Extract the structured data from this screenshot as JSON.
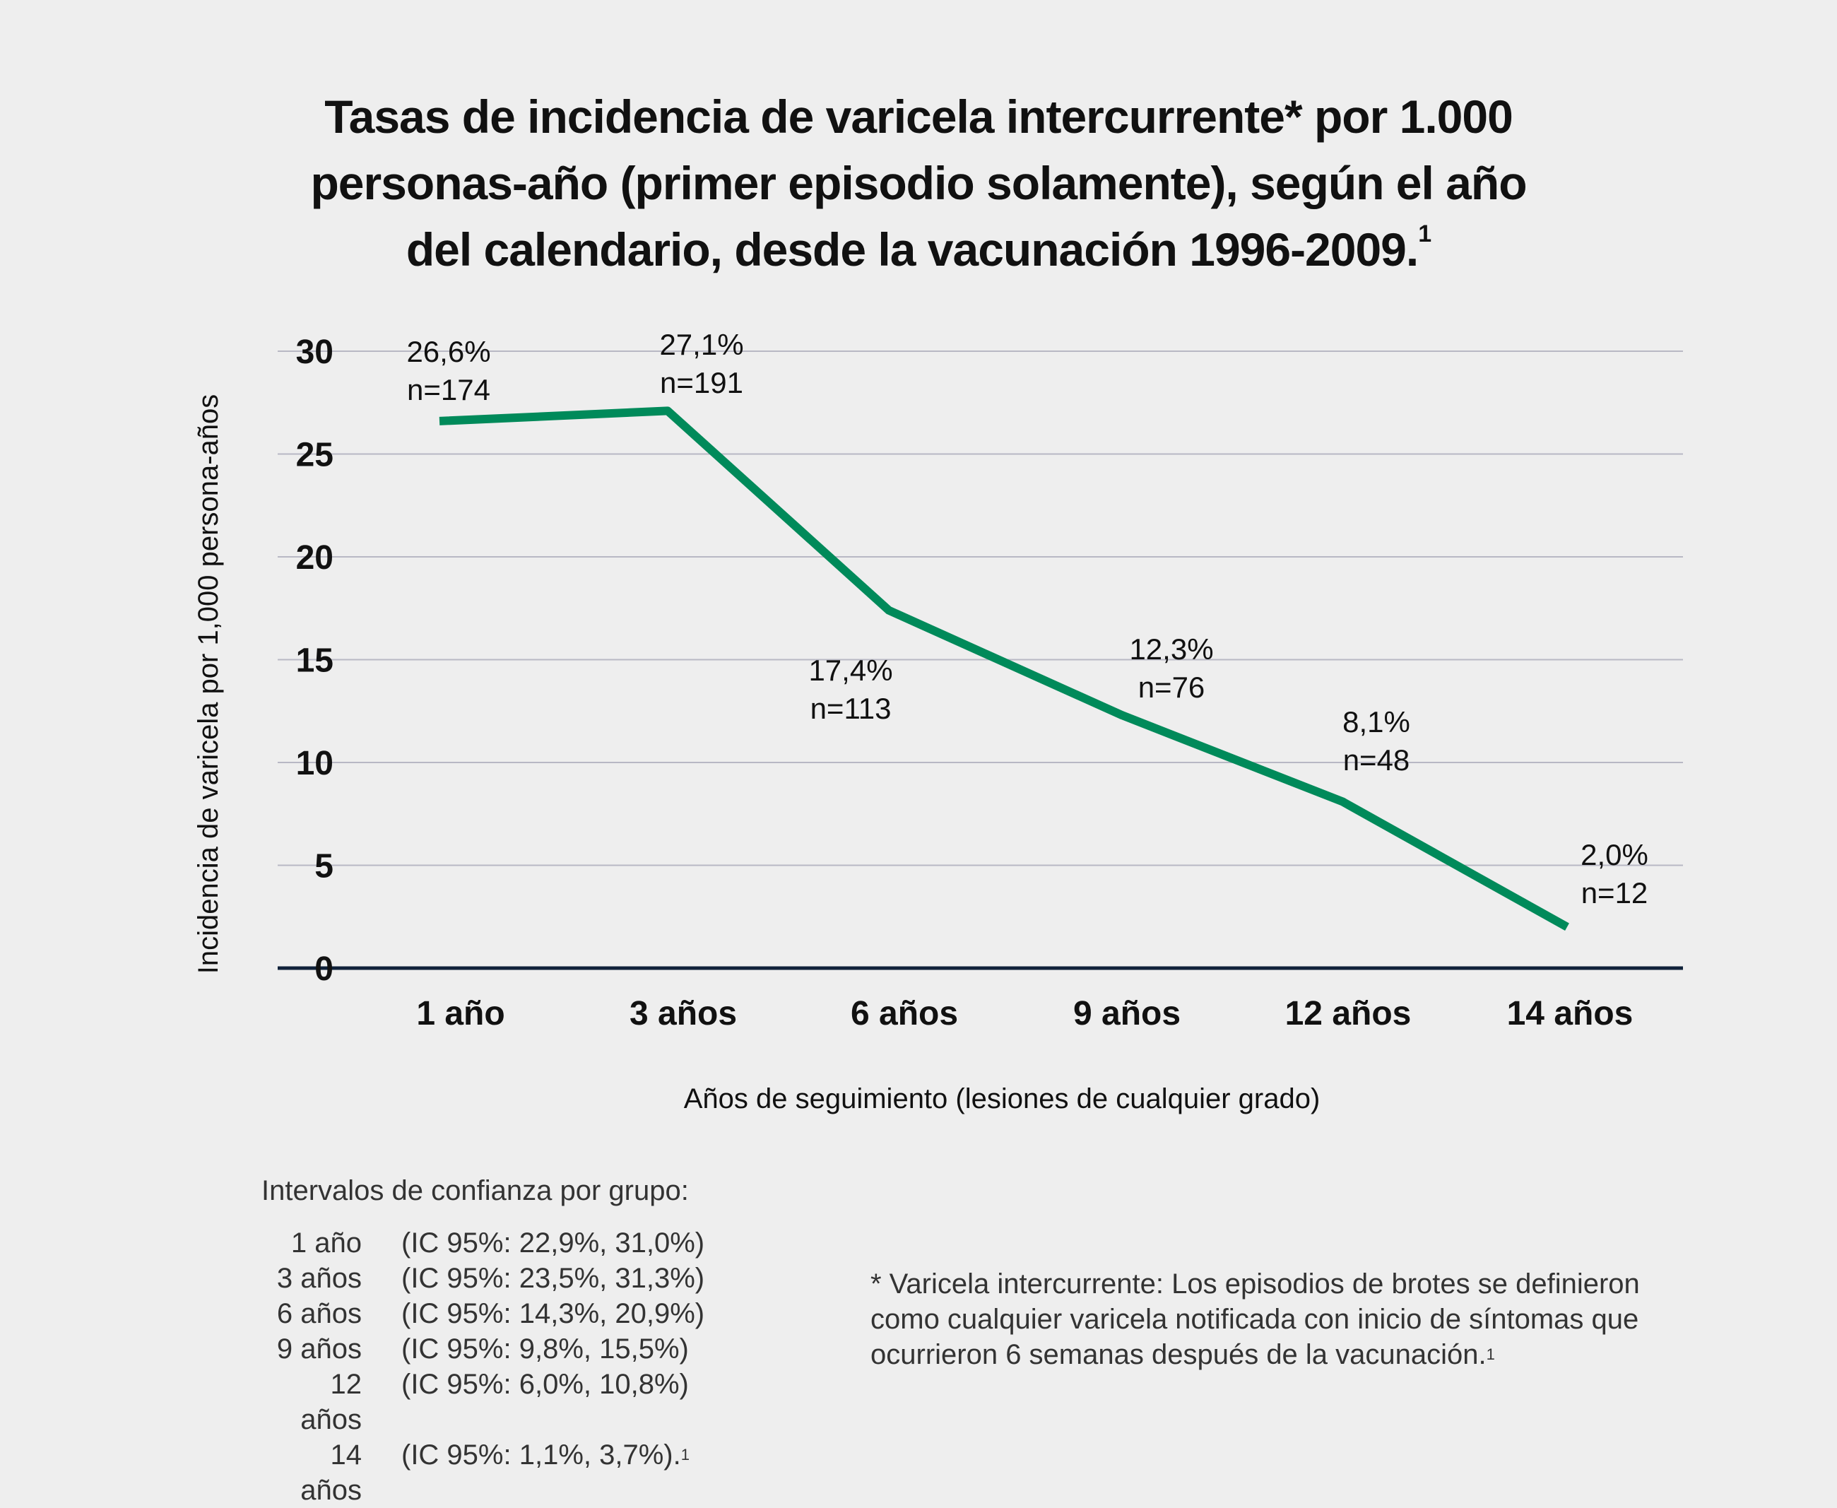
{
  "title": {
    "lines": [
      "Tasas de incidencia de varicela intercurrente* por 1.000",
      "personas-año (primer episodio solamente), según el año",
      "del calendario, desde la vacunación 1996-2009."
    ],
    "superscript": "1"
  },
  "chart_data": {
    "type": "line",
    "title": "Tasas de incidencia de varicela intercurrente* por 1.000 personas-año (primer episodio solamente), según el año del calendario, desde la vacunación 1996-2009.",
    "xlabel": "Años de seguimiento (lesiones de cualquier grado)",
    "ylabel": "Incidencia de varicela por 1,000 persona-años",
    "categories": [
      "1 año",
      "3 años",
      "6 años",
      "9 años",
      "12 años",
      "14 años"
    ],
    "series": [
      {
        "name": "Incidencia",
        "color": "#008a5a",
        "values": [
          26.6,
          27.1,
          17.4,
          12.3,
          8.1,
          2.0
        ]
      }
    ],
    "data_labels": [
      {
        "pct": "26,6%",
        "n": "n=174"
      },
      {
        "pct": "27,1%",
        "n": "n=191"
      },
      {
        "pct": "17,4%",
        "n": "n=113"
      },
      {
        "pct": "12,3%",
        "n": "n=76"
      },
      {
        "pct": "8,1%",
        "n": "n=48"
      },
      {
        "pct": "2,0%",
        "n": "n=12"
      }
    ],
    "yticks": [
      0,
      5,
      10,
      15,
      20,
      25,
      30
    ],
    "ylim": [
      0,
      30
    ],
    "grid": true,
    "gridline_color": "#b8b8c4",
    "baseline_color": "#10213a",
    "legend": "none"
  },
  "confidence_intervals": {
    "heading": "Intervalos de confianza por grupo:",
    "rows": [
      {
        "group": "1 año",
        "interval": "(IC 95%: 22,9%, 31,0%)",
        "sup": ""
      },
      {
        "group": "3 años",
        "interval": "(IC 95%: 23,5%, 31,3%)",
        "sup": ""
      },
      {
        "group": "6 años",
        "interval": "(IC 95%: 14,3%, 20,9%)",
        "sup": ""
      },
      {
        "group": "9 años",
        "interval": "(IC 95%: 9,8%, 15,5%)",
        "sup": ""
      },
      {
        "group": "12 años",
        "interval": "(IC 95%: 6,0%, 10,8%)",
        "sup": ""
      },
      {
        "group": "14 años",
        "interval": "(IC 95%: 1,1%, 3,7%).",
        "sup": "1"
      }
    ]
  },
  "footnote": {
    "text": "* Varicela intercurrente: Los episodios de brotes se definieron como cualquier varicela notificada con inicio de síntomas que ocurrieron 6 semanas después de la vacunación.",
    "superscript": "1"
  }
}
